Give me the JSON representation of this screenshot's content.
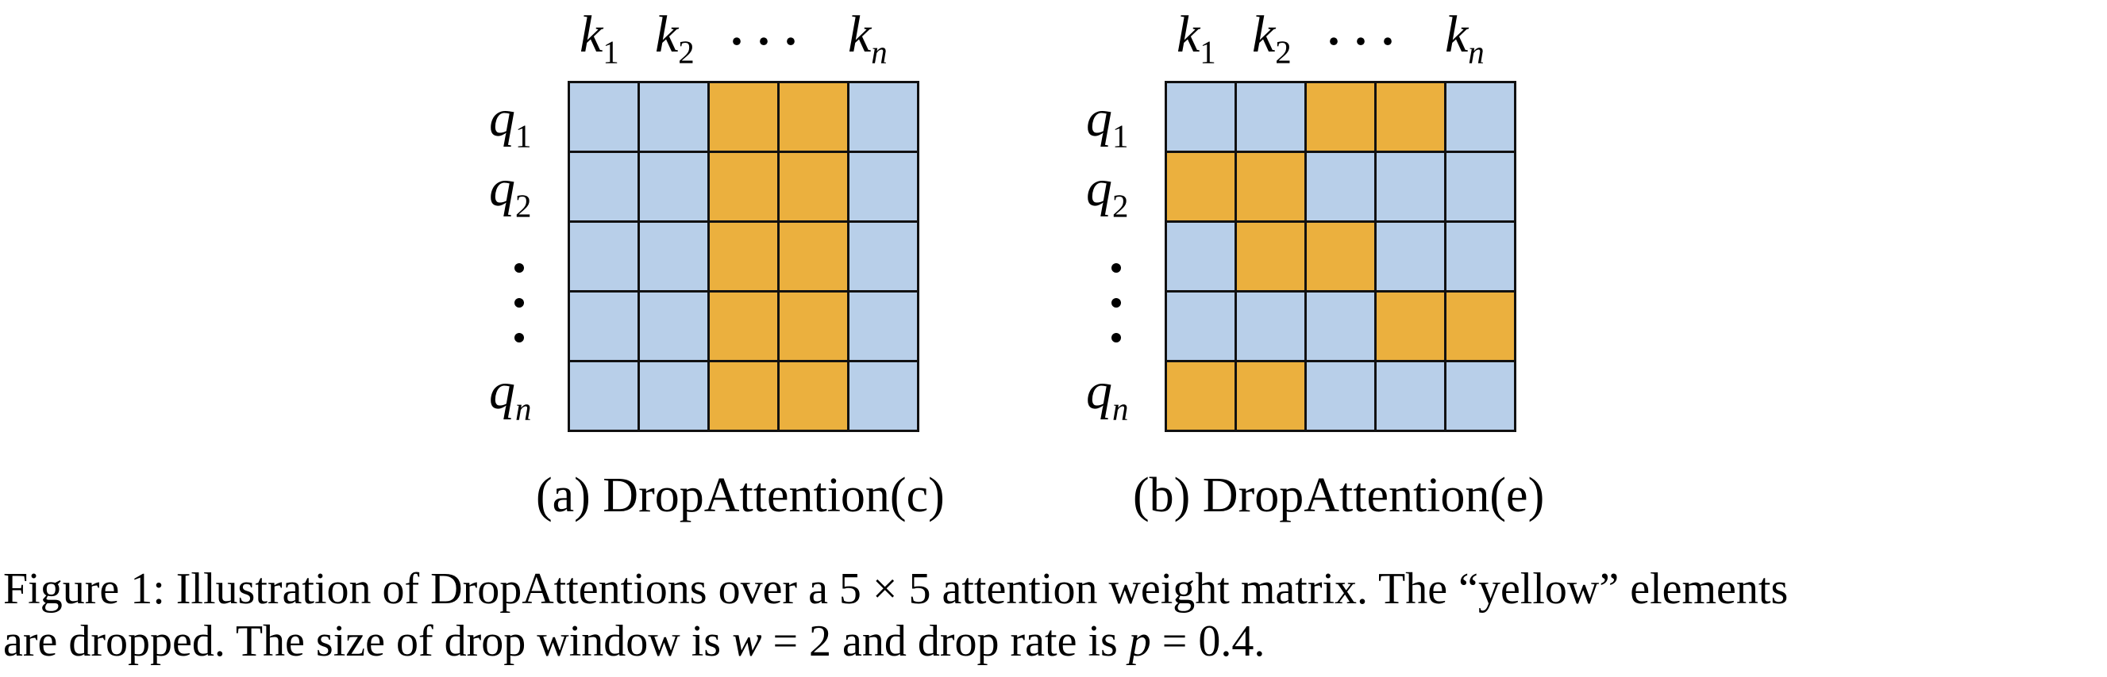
{
  "colors": {
    "kept": "#b8cfe9",
    "dropped": "#ebb03e",
    "grid_line": "#111111"
  },
  "panels": [
    {
      "id": "a",
      "col_labels": {
        "k1": "k",
        "k1_sub": "1",
        "k2": "k",
        "k2_sub": "2",
        "dots": "···",
        "kn": "k",
        "kn_sub": "n"
      },
      "row_labels": {
        "q1": "q",
        "q1_sub": "1",
        "q2": "q",
        "q2_sub": "2",
        "qn": "q",
        "qn_sub": "n"
      },
      "matrix": [
        [
          0,
          0,
          1,
          1,
          0
        ],
        [
          0,
          0,
          1,
          1,
          0
        ],
        [
          0,
          0,
          1,
          1,
          0
        ],
        [
          0,
          0,
          1,
          1,
          0
        ],
        [
          0,
          0,
          1,
          1,
          0
        ]
      ],
      "caption": "(a) DropAttention(c)"
    },
    {
      "id": "b",
      "col_labels": {
        "k1": "k",
        "k1_sub": "1",
        "k2": "k",
        "k2_sub": "2",
        "dots": "···",
        "kn": "k",
        "kn_sub": "n"
      },
      "row_labels": {
        "q1": "q",
        "q1_sub": "1",
        "q2": "q",
        "q2_sub": "2",
        "qn": "q",
        "qn_sub": "n"
      },
      "matrix": [
        [
          0,
          0,
          1,
          1,
          0
        ],
        [
          1,
          1,
          0,
          0,
          0
        ],
        [
          0,
          1,
          1,
          0,
          0
        ],
        [
          0,
          0,
          0,
          1,
          1
        ],
        [
          1,
          1,
          0,
          0,
          0
        ]
      ],
      "caption": "(b) DropAttention(e)"
    }
  ],
  "figure_caption": {
    "line1_a": "Figure 1: Illustration of DropAttentions over a 5 × 5 attention weight matrix. The “yellow” elements",
    "line2_a": "are dropped. The size of drop window is ",
    "w": "w",
    "eq1": " = 2 and drop rate is ",
    "p": "p",
    "eq2": " = 0.4."
  }
}
